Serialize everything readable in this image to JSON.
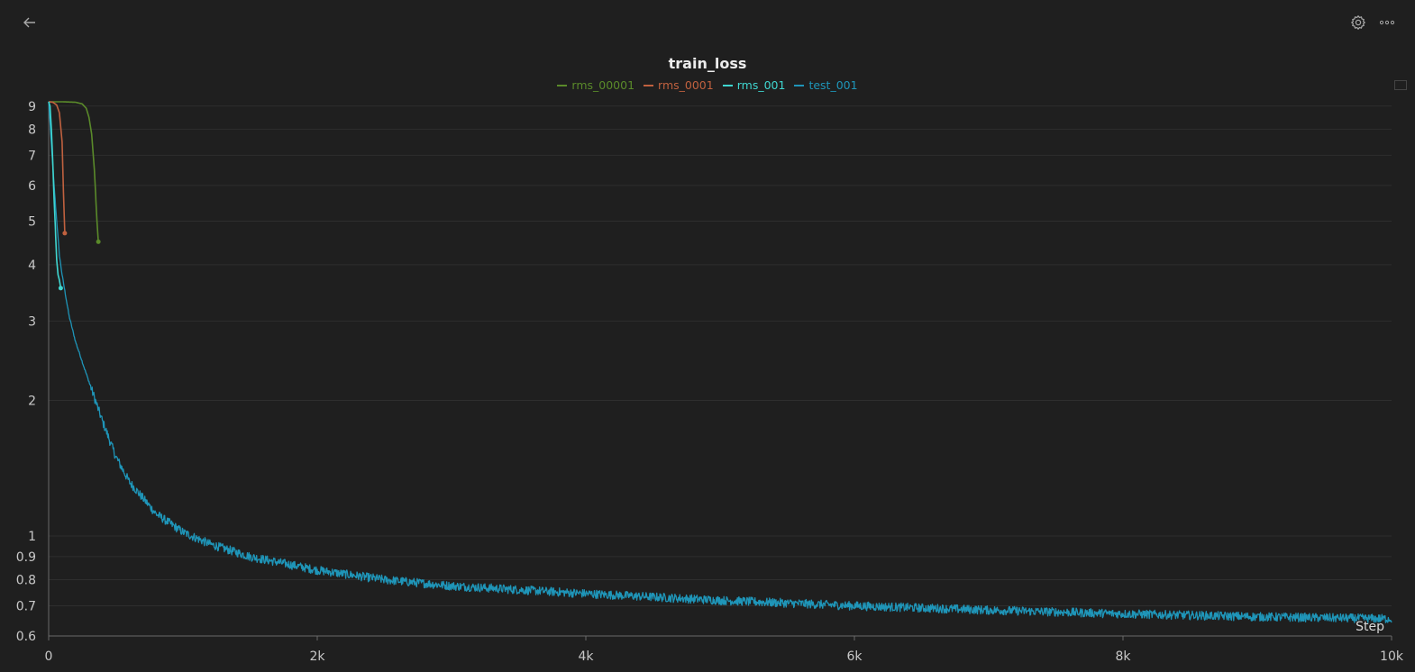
{
  "toolbar": {
    "back_icon": "arrow-left-icon",
    "settings_icon": "gear-icon",
    "more_icon": "ellipsis-icon"
  },
  "chart_data": {
    "type": "line",
    "title": "train_loss",
    "xlabel": "Step",
    "ylabel": "",
    "yscale": "log",
    "xlim": [
      0,
      10000
    ],
    "ylim": [
      0.6,
      9.2
    ],
    "x_ticks": [
      0,
      2000,
      4000,
      6000,
      8000,
      10000
    ],
    "x_tick_labels": [
      "0",
      "2k",
      "4k",
      "6k",
      "8k",
      "10k"
    ],
    "y_ticks": [
      0.6,
      0.7,
      0.8,
      0.9,
      1,
      2,
      3,
      4,
      5,
      6,
      7,
      8,
      9
    ],
    "y_tick_labels": [
      "0.6",
      "0.7",
      "0.8",
      "0.9",
      "1",
      "2",
      "3",
      "4",
      "5",
      "6",
      "7",
      "8",
      "9"
    ],
    "grid": true,
    "legend_position": "top-center",
    "series": [
      {
        "name": "rms_00001",
        "color": "#5a8a2a",
        "x": [
          0,
          50,
          100,
          150,
          200,
          250,
          280,
          300,
          320,
          340,
          360,
          370
        ],
        "y": [
          9.2,
          9.2,
          9.2,
          9.19,
          9.18,
          9.1,
          8.9,
          8.5,
          7.8,
          6.5,
          5.0,
          4.5
        ]
      },
      {
        "name": "rms_0001",
        "color": "#c0613f",
        "x": [
          0,
          30,
          60,
          80,
          100,
          110,
          120
        ],
        "y": [
          9.2,
          9.18,
          9.05,
          8.7,
          7.5,
          5.8,
          4.7
        ]
      },
      {
        "name": "rms_001",
        "color": "#3fd6d0",
        "x": [
          0,
          10,
          20,
          30,
          40,
          50,
          60,
          70,
          80,
          90
        ],
        "y": [
          9.2,
          9.0,
          8.0,
          6.8,
          5.6,
          4.8,
          4.1,
          3.8,
          3.7,
          3.55
        ]
      },
      {
        "name": "test_001",
        "color": "#1f95b8",
        "x": [
          0,
          40,
          80,
          100,
          150,
          200,
          300,
          400,
          500,
          600,
          800,
          1000,
          1200,
          1500,
          2000,
          2500,
          3000,
          4000,
          5000,
          6000,
          7000,
          8000,
          9000,
          10000
        ],
        "y": [
          9.2,
          6.0,
          4.2,
          3.8,
          3.1,
          2.7,
          2.2,
          1.8,
          1.5,
          1.32,
          1.12,
          1.02,
          0.96,
          0.9,
          0.84,
          0.8,
          0.775,
          0.745,
          0.72,
          0.7,
          0.685,
          0.672,
          0.662,
          0.655
        ]
      }
    ]
  }
}
